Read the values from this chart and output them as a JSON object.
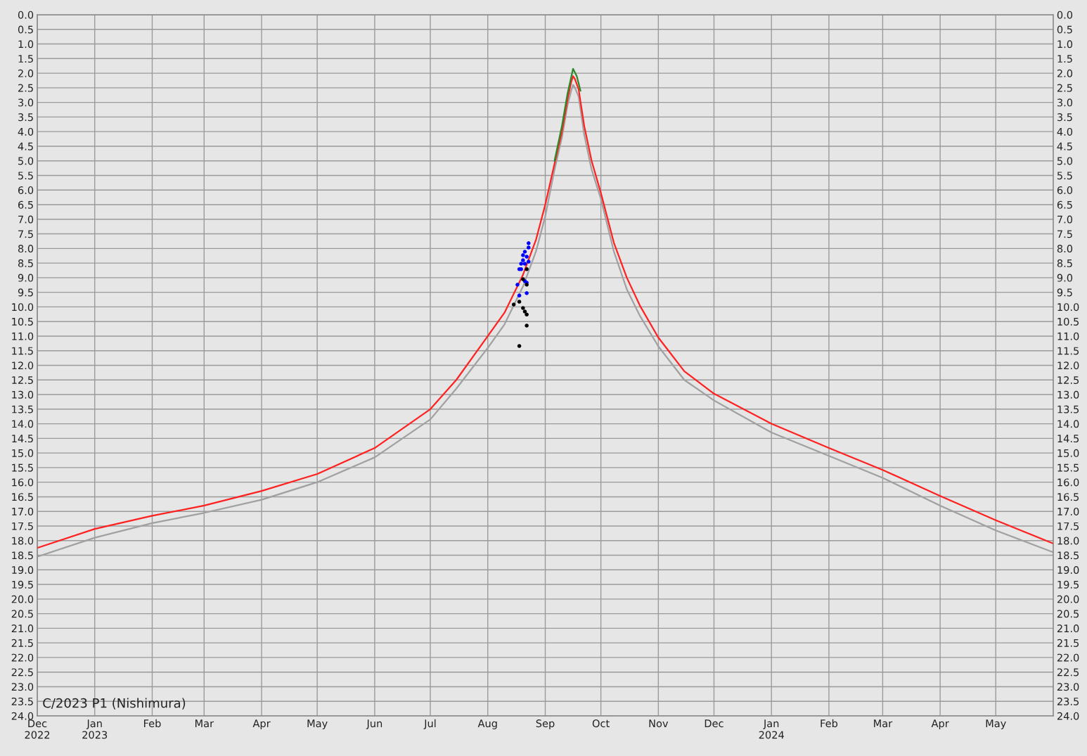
{
  "chart_data": {
    "type": "line",
    "title": "C/2023 P1 (Nishimura)",
    "xlim": [
      "2022-12-01",
      "2024-06-01"
    ],
    "xticks": [
      {
        "value": "2022-12-01",
        "label": "Dec\n2022"
      },
      {
        "value": "2023-01-01",
        "label": "Jan\n2023"
      },
      {
        "value": "2023-02-01",
        "label": "Feb"
      },
      {
        "value": "2023-03-01",
        "label": "Mar"
      },
      {
        "value": "2023-04-01",
        "label": "Apr"
      },
      {
        "value": "2023-05-01",
        "label": "May"
      },
      {
        "value": "2023-06-01",
        "label": "Jun"
      },
      {
        "value": "2023-07-01",
        "label": "Jul"
      },
      {
        "value": "2023-08-01",
        "label": "Aug"
      },
      {
        "value": "2023-09-01",
        "label": "Sep"
      },
      {
        "value": "2023-10-01",
        "label": "Oct"
      },
      {
        "value": "2023-11-01",
        "label": "Nov"
      },
      {
        "value": "2023-12-01",
        "label": "Dec"
      },
      {
        "value": "2024-01-01",
        "label": "Jan\n2024"
      },
      {
        "value": "2024-02-01",
        "label": "Feb"
      },
      {
        "value": "2024-03-01",
        "label": "Mar"
      },
      {
        "value": "2024-04-01",
        "label": "Apr"
      },
      {
        "value": "2024-05-01",
        "label": "May"
      }
    ],
    "ylim": [
      24,
      0
    ],
    "y2lim": [
      24,
      0
    ],
    "yticks": [
      {
        "value": 0,
        "label": "0.0"
      },
      {
        "value": 0.5,
        "label": "0.5"
      },
      {
        "value": 1,
        "label": "1.0"
      },
      {
        "value": 1.5,
        "label": "1.5"
      },
      {
        "value": 2,
        "label": "2.0"
      },
      {
        "value": 2.5,
        "label": "2.5"
      },
      {
        "value": 3,
        "label": "3.0"
      },
      {
        "value": 3.5,
        "label": "3.5"
      },
      {
        "value": 4,
        "label": "4.0"
      },
      {
        "value": 4.5,
        "label": "4.5"
      },
      {
        "value": 5,
        "label": "5.0"
      },
      {
        "value": 5.5,
        "label": "5.5"
      },
      {
        "value": 6,
        "label": "6.0"
      },
      {
        "value": 6.5,
        "label": "6.5"
      },
      {
        "value": 7,
        "label": "7.0"
      },
      {
        "value": 7.5,
        "label": "7.5"
      },
      {
        "value": 8,
        "label": "8.0"
      },
      {
        "value": 8.5,
        "label": "8.5"
      },
      {
        "value": 9,
        "label": "9.0"
      },
      {
        "value": 9.5,
        "label": "9.5"
      },
      {
        "value": 10,
        "label": "10.0"
      },
      {
        "value": 10.5,
        "label": "10.5"
      },
      {
        "value": 11,
        "label": "11.0"
      },
      {
        "value": 11.5,
        "label": "11.5"
      },
      {
        "value": 12,
        "label": "12.0"
      },
      {
        "value": 12.5,
        "label": "12.5"
      },
      {
        "value": 13,
        "label": "13.0"
      },
      {
        "value": 13.5,
        "label": "13.5"
      },
      {
        "value": 14,
        "label": "14.0"
      },
      {
        "value": 14.5,
        "label": "14.5"
      },
      {
        "value": 15,
        "label": "15.0"
      },
      {
        "value": 15.5,
        "label": "15.5"
      },
      {
        "value": 16,
        "label": "16.0"
      },
      {
        "value": 16.5,
        "label": "16.5"
      },
      {
        "value": 17,
        "label": "17.0"
      },
      {
        "value": 17.5,
        "label": "17.5"
      },
      {
        "value": 18,
        "label": "18.0"
      },
      {
        "value": 18.5,
        "label": "18.5"
      },
      {
        "value": 19,
        "label": "19.0"
      },
      {
        "value": 19.5,
        "label": "19.5"
      },
      {
        "value": 20,
        "label": "20.0"
      },
      {
        "value": 20.5,
        "label": "20.5"
      },
      {
        "value": 21,
        "label": "21.0"
      },
      {
        "value": 21.5,
        "label": "21.5"
      },
      {
        "value": 22,
        "label": "22.0"
      },
      {
        "value": 22.5,
        "label": "22.5"
      },
      {
        "value": 23,
        "label": "23.0"
      },
      {
        "value": 23.5,
        "label": "23.5"
      },
      {
        "value": 24,
        "label": "24.0"
      }
    ],
    "y2ticks": [
      {
        "value": 0,
        "label": "0.0"
      },
      {
        "value": 0.5,
        "label": "0.5"
      },
      {
        "value": 1,
        "label": "1.0"
      },
      {
        "value": 1.5,
        "label": "1.5"
      },
      {
        "value": 2,
        "label": "2.0"
      },
      {
        "value": 2.5,
        "label": "2.5"
      },
      {
        "value": 3,
        "label": "3.0"
      },
      {
        "value": 3.5,
        "label": "3.5"
      },
      {
        "value": 4,
        "label": "4.0"
      },
      {
        "value": 4.5,
        "label": "4.5"
      },
      {
        "value": 5,
        "label": "5.0"
      },
      {
        "value": 5.5,
        "label": "5.5"
      },
      {
        "value": 6,
        "label": "6.0"
      },
      {
        "value": 6.5,
        "label": "6.5"
      },
      {
        "value": 7,
        "label": "7.0"
      },
      {
        "value": 7.5,
        "label": "7.5"
      },
      {
        "value": 8,
        "label": "8.0"
      },
      {
        "value": 8.5,
        "label": "8.5"
      },
      {
        "value": 9,
        "label": "9.0"
      },
      {
        "value": 9.5,
        "label": "9.5"
      },
      {
        "value": 10,
        "label": "10.0"
      },
      {
        "value": 10.5,
        "label": "10.5"
      },
      {
        "value": 11,
        "label": "11.0"
      },
      {
        "value": 11.5,
        "label": "11.5"
      },
      {
        "value": 12,
        "label": "12.0"
      },
      {
        "value": 12.5,
        "label": "12.5"
      },
      {
        "value": 13,
        "label": "13.0"
      },
      {
        "value": 13.5,
        "label": "13.5"
      },
      {
        "value": 14,
        "label": "14.0"
      },
      {
        "value": 14.5,
        "label": "14.5"
      },
      {
        "value": 15,
        "label": "15.0"
      },
      {
        "value": 15.5,
        "label": "15.5"
      },
      {
        "value": 16,
        "label": "16.0"
      },
      {
        "value": 16.5,
        "label": "16.5"
      },
      {
        "value": 17,
        "label": "17.0"
      },
      {
        "value": 17.5,
        "label": "17.5"
      },
      {
        "value": 18,
        "label": "18.0"
      },
      {
        "value": 18.5,
        "label": "18.5"
      },
      {
        "value": 19,
        "label": "19.0"
      },
      {
        "value": 19.5,
        "label": "19.5"
      },
      {
        "value": 20,
        "label": "20.0"
      },
      {
        "value": 20.5,
        "label": "20.5"
      },
      {
        "value": 21,
        "label": "21.0"
      },
      {
        "value": 21.5,
        "label": "21.5"
      },
      {
        "value": 22,
        "label": "22.0"
      },
      {
        "value": 22.5,
        "label": "22.5"
      },
      {
        "value": 23,
        "label": "23.0"
      },
      {
        "value": 23.5,
        "label": "23.5"
      },
      {
        "value": 24,
        "label": "24.0"
      }
    ],
    "grid": true,
    "series": [
      {
        "color": "#a0a0a0",
        "x": [
          "2022-12-01",
          "2023-01-01",
          "2023-02-01",
          "2023-03-01",
          "2023-04-01",
          "2023-05-01",
          "2023-06-01",
          "2023-07-01",
          "2023-07-15",
          "2023-08-01",
          "2023-08-10",
          "2023-08-20",
          "2023-08-27",
          "2023-09-01",
          "2023-09-06",
          "2023-09-10",
          "2023-09-13",
          "2023-09-15",
          "2023-09-16",
          "2023-09-17",
          "2023-09-19",
          "2023-09-22",
          "2023-09-26",
          "2023-10-01",
          "2023-10-08",
          "2023-10-15",
          "2023-10-22",
          "2023-11-01",
          "2023-11-15",
          "2023-12-01",
          "2024-01-01",
          "2024-02-01",
          "2024-03-01",
          "2024-04-01",
          "2024-05-01",
          "2024-06-01"
        ],
        "values": [
          18.55,
          17.9,
          17.4,
          17.05,
          16.6,
          16.0,
          15.15,
          13.85,
          12.8,
          11.4,
          10.6,
          9.3,
          8.1,
          6.9,
          5.3,
          4.2,
          3.1,
          2.6,
          2.4,
          2.5,
          2.8,
          4.1,
          5.3,
          6.3,
          8.1,
          9.4,
          10.3,
          11.35,
          12.5,
          13.2,
          14.3,
          15.1,
          15.85,
          16.8,
          17.65,
          18.4
        ]
      },
      {
        "color": "#ff2020",
        "x": [
          "2022-12-01",
          "2023-01-01",
          "2023-02-01",
          "2023-03-01",
          "2023-04-01",
          "2023-05-01",
          "2023-06-01",
          "2023-07-01",
          "2023-07-15",
          "2023-08-01",
          "2023-08-10",
          "2023-08-20",
          "2023-08-27",
          "2023-09-01",
          "2023-09-06",
          "2023-09-10",
          "2023-09-13",
          "2023-09-15",
          "2023-09-16",
          "2023-09-17",
          "2023-09-19",
          "2023-09-22",
          "2023-09-26",
          "2023-10-01",
          "2023-10-08",
          "2023-10-15",
          "2023-10-22",
          "2023-11-01",
          "2023-11-15",
          "2023-12-01",
          "2024-01-01",
          "2024-02-01",
          "2024-03-01",
          "2024-04-01",
          "2024-05-01",
          "2024-06-01"
        ],
        "values": [
          18.25,
          17.6,
          17.15,
          16.8,
          16.3,
          15.72,
          14.83,
          13.5,
          12.5,
          11.0,
          10.2,
          8.9,
          7.7,
          6.5,
          5.1,
          4.0,
          2.9,
          2.3,
          2.1,
          2.2,
          2.55,
          3.8,
          5.0,
          6.1,
          7.8,
          9.0,
          9.95,
          11.05,
          12.2,
          12.97,
          14.0,
          14.83,
          15.58,
          16.47,
          17.3,
          18.1
        ]
      },
      {
        "color": "#2a8a2a",
        "x": [
          "2023-09-06",
          "2023-09-10",
          "2023-09-13",
          "2023-09-16",
          "2023-09-18",
          "2023-09-20"
        ],
        "values": [
          5.0,
          3.8,
          2.7,
          1.85,
          2.1,
          2.6
        ]
      },
      {
        "type": "scatter",
        "marker": "circle",
        "color": "#0000ff",
        "x": [
          "2023-08-23",
          "2023-08-23",
          "2023-08-21",
          "2023-08-20",
          "2023-08-22",
          "2023-08-20",
          "2023-08-23",
          "2023-08-19",
          "2023-08-21",
          "2023-08-18",
          "2023-08-19",
          "2023-08-21",
          "2023-08-22",
          "2023-08-17",
          "2023-08-22",
          "2023-08-18"
        ],
        "values": [
          7.82,
          7.97,
          8.11,
          8.23,
          8.28,
          8.4,
          8.45,
          8.52,
          8.52,
          8.71,
          8.71,
          9.12,
          9.17,
          9.24,
          9.53,
          9.61
        ]
      },
      {
        "type": "scatter",
        "marker": "circle",
        "color": "#000000",
        "x": [
          "2023-08-22",
          "2023-08-20",
          "2023-08-22",
          "2023-08-15",
          "2023-08-18",
          "2023-08-20",
          "2023-08-21",
          "2023-08-22",
          "2023-08-22",
          "2023-08-18"
        ],
        "values": [
          8.71,
          9.05,
          9.24,
          9.92,
          9.82,
          10.04,
          10.16,
          10.26,
          10.64,
          11.34
        ]
      }
    ]
  }
}
